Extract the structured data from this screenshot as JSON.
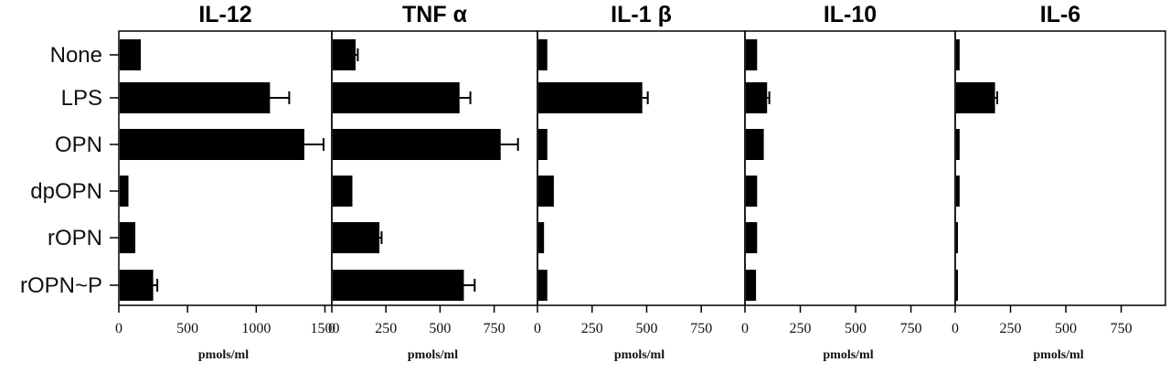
{
  "chart_data": {
    "type": "bar",
    "orientation": "horizontal",
    "categories": [
      "None",
      "LPS",
      "OPN",
      "dpOPN",
      "rOPN",
      "rOPN~P"
    ],
    "panels": [
      {
        "title": "IL-12",
        "xlabel": "pmols/ml",
        "xlim": [
          0,
          1550
        ],
        "ticks": [
          0,
          500,
          1000,
          1500
        ],
        "tick_labels": [
          "0",
          "500",
          "1000",
          "1500"
        ],
        "values": [
          160,
          1100,
          1350,
          70,
          120,
          250
        ],
        "errors": [
          0,
          140,
          140,
          0,
          0,
          30
        ]
      },
      {
        "title": "TNF α",
        "xlabel": "pmols/ml",
        "xlim": [
          0,
          950
        ],
        "ticks": [
          0,
          250,
          500,
          750
        ],
        "tick_labels": [
          "0",
          "250",
          "500",
          "750"
        ],
        "values": [
          110,
          590,
          780,
          95,
          220,
          610
        ],
        "errors": [
          10,
          50,
          80,
          0,
          10,
          50
        ]
      },
      {
        "title": "IL-1 β",
        "xlabel": "pmols/ml",
        "xlim": [
          0,
          950
        ],
        "ticks": [
          0,
          250,
          500,
          750
        ],
        "tick_labels": [
          "0",
          "250",
          "500",
          "750"
        ],
        "values": [
          45,
          480,
          45,
          75,
          30,
          45
        ],
        "errors": [
          0,
          25,
          0,
          0,
          0,
          0
        ]
      },
      {
        "title": "IL-10",
        "xlabel": "pmols/ml",
        "xlim": [
          0,
          950
        ],
        "ticks": [
          0,
          250,
          500,
          750
        ],
        "tick_labels": [
          "0",
          "250",
          "500",
          "750"
        ],
        "values": [
          55,
          100,
          85,
          55,
          55,
          50
        ],
        "errors": [
          0,
          10,
          0,
          0,
          0,
          0
        ]
      },
      {
        "title": "IL-6",
        "xlabel": "pmols/ml",
        "xlim": [
          0,
          950
        ],
        "ticks": [
          0,
          250,
          500,
          750
        ],
        "tick_labels": [
          "0",
          "250",
          "500",
          "750"
        ],
        "values": [
          20,
          180,
          20,
          20,
          10,
          5
        ],
        "errors": [
          0,
          10,
          0,
          0,
          0,
          0
        ]
      }
    ],
    "bar_color": "#000000",
    "grid": false,
    "legend": "none"
  }
}
